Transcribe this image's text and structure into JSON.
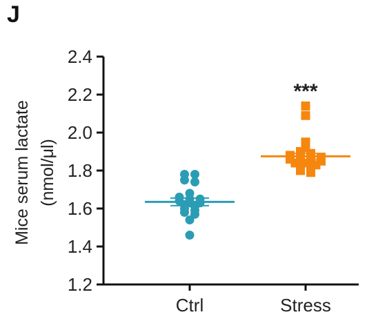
{
  "panel_label": "J",
  "chart_data": {
    "type": "scatter",
    "title": "",
    "ylabel_line1": "Mice serum lactate",
    "ylabel_line2": "(nmol/μl)",
    "ylim": [
      1.2,
      2.4
    ],
    "yticks": [
      "1.2",
      "1.4",
      "1.6",
      "1.8",
      "2.0",
      "2.2",
      "2.4"
    ],
    "categories": [
      "Ctrl",
      "Stress"
    ],
    "series": [
      {
        "category": "Ctrl",
        "marker": "circle",
        "color": "#2a9db5",
        "mean": 1.635,
        "sem": 0.02,
        "values": [
          1.78,
          1.78,
          1.75,
          1.74,
          1.68,
          1.66,
          1.65,
          1.65,
          1.64,
          1.63,
          1.63,
          1.62,
          1.61,
          1.6,
          1.59,
          1.58,
          1.57,
          1.54,
          1.46
        ]
      },
      {
        "category": "Stress",
        "marker": "square",
        "color": "#f5870f",
        "mean": 1.875,
        "sem": 0.015,
        "values": [
          2.14,
          2.09,
          1.95,
          1.92,
          1.9,
          1.89,
          1.88,
          1.88,
          1.87,
          1.87,
          1.86,
          1.86,
          1.85,
          1.85,
          1.84,
          1.84,
          1.83,
          1.82,
          1.81,
          1.8,
          1.79
        ]
      }
    ],
    "annotations": [
      {
        "category": "Stress",
        "text": "***"
      }
    ]
  }
}
